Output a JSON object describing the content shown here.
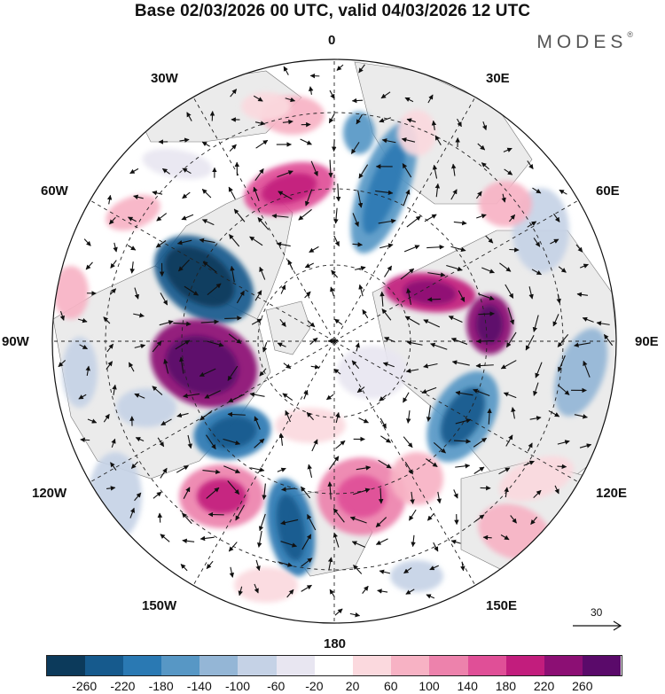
{
  "title": "Base 02/03/2026 00 UTC, valid 04/03/2026 12 UTC",
  "brand": "MODES",
  "brand_mark": "®",
  "map": {
    "projection": "polar-stereographic-north",
    "longitude_labels": {
      "top": "0",
      "top_left": "30W",
      "top_right": "30E",
      "upper_left": "60W",
      "upper_right": "60E",
      "left": "90W",
      "right": "90E",
      "lower_left": "120W",
      "lower_right": "120E",
      "bottom_left": "150W",
      "bottom_right": "150E",
      "bottom": "180"
    },
    "reference_vector": {
      "label": "30",
      "icon": "arrow-right-icon"
    }
  },
  "colorbar": {
    "ticks": [
      "-260",
      "-220",
      "-180",
      "-140",
      "-100",
      "-60",
      "-20",
      "20",
      "60",
      "100",
      "140",
      "180",
      "220",
      "260"
    ],
    "colors": [
      "#0c3a5b",
      "#165a8d",
      "#2a79b3",
      "#5797c5",
      "#94b6d6",
      "#c5d2e6",
      "#e8e6f1",
      "#ffffff",
      "#fbd9de",
      "#f7b2c4",
      "#ed82ac",
      "#e04f97",
      "#c21d7d",
      "#8c0f74",
      "#5a0a6a"
    ],
    "land_color": "#ebebeb"
  }
}
